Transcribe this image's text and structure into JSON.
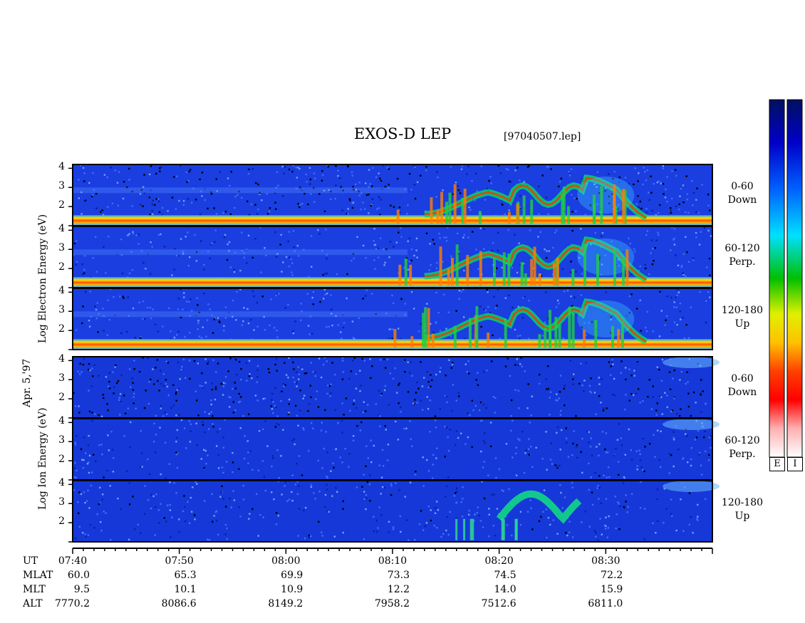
{
  "header": {
    "title": "EXOS-D LEP",
    "file": "[97040507.lep]"
  },
  "side_labels": {
    "electron": "Log  Electron  Energy (eV)",
    "date": "Apr. 5,'97",
    "ion": "Log   Ion  Energy (eV)"
  },
  "colorbars": {
    "electron_label": "E",
    "ion_label": "I"
  },
  "chart_data": {
    "type": "heatmap",
    "x_range": [
      "07:40",
      "08:40"
    ],
    "x_ticks": [
      "07:40",
      "07:50",
      "08:00",
      "08:10",
      "08:20",
      "08:30"
    ],
    "y_ticks": [
      "2",
      "3",
      "4"
    ],
    "ylim": [
      1,
      4.2
    ],
    "panels": [
      {
        "species": "electron",
        "name_line1": "0-60",
        "name_line2": "Down"
      },
      {
        "species": "electron",
        "name_line1": "60-120",
        "name_line2": "Perp."
      },
      {
        "species": "electron",
        "name_line1": "120-180",
        "name_line2": "Up"
      },
      {
        "species": "ion",
        "name_line1": "0-60",
        "name_line2": "Down"
      },
      {
        "species": "ion",
        "name_line1": "60-120",
        "name_line2": "Perp."
      },
      {
        "species": "ion",
        "name_line1": "120-180",
        "name_line2": "Up"
      }
    ],
    "ephemeris": {
      "row_labels": [
        "UT",
        "MLAT",
        "MLT",
        "ALT"
      ],
      "MLAT": [
        "60.0",
        "65.3",
        "69.9",
        "73.3",
        "74.5",
        "72.2"
      ],
      "MLT": [
        "9.5",
        "10.1",
        "10.9",
        "12.2",
        "14.0",
        "15.9"
      ],
      "ALT": [
        "7770.2",
        "8086.6",
        "8149.2",
        "7958.2",
        "7512.6",
        "6811.0"
      ]
    }
  }
}
